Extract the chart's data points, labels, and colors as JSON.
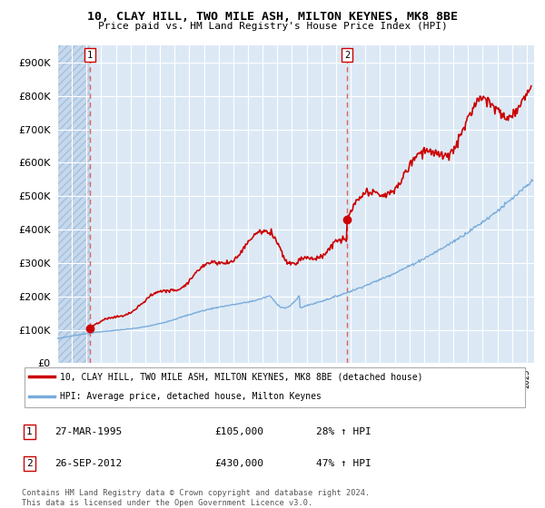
{
  "title": "10, CLAY HILL, TWO MILE ASH, MILTON KEYNES, MK8 8BE",
  "subtitle": "Price paid vs. HM Land Registry's House Price Index (HPI)",
  "legend_line1": "10, CLAY HILL, TWO MILE ASH, MILTON KEYNES, MK8 8BE (detached house)",
  "legend_line2": "HPI: Average price, detached house, Milton Keynes",
  "transaction1_label": "27-MAR-1995",
  "transaction1_amount": "£105,000",
  "transaction1_hpi": "28% ↑ HPI",
  "transaction1_year": 1995.23,
  "transaction1_price": 105000,
  "transaction2_label": "26-SEP-2012",
  "transaction2_amount": "£430,000",
  "transaction2_hpi": "47% ↑ HPI",
  "transaction2_year": 2012.74,
  "transaction2_price": 430000,
  "footer": "Contains HM Land Registry data © Crown copyright and database right 2024.\nThis data is licensed under the Open Government Licence v3.0.",
  "ylim": [
    0,
    950000
  ],
  "yticks": [
    0,
    100000,
    200000,
    300000,
    400000,
    500000,
    600000,
    700000,
    800000,
    900000
  ],
  "xlim_start": 1993.0,
  "xlim_end": 2025.5,
  "plot_bg_color": "#dce9f5",
  "line_color_red": "#cc0000",
  "line_color_blue": "#7aacdb",
  "dashed_line_color": "#e06060",
  "dot_color": "#cc0000"
}
